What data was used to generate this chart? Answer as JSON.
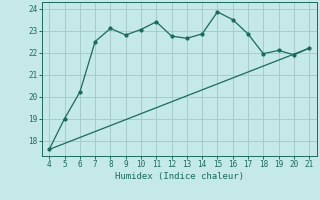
{
  "xlabel": "Humidex (Indice chaleur)",
  "xlim": [
    3.5,
    21.5
  ],
  "ylim": [
    17.3,
    24.3
  ],
  "xticks": [
    4,
    5,
    6,
    7,
    8,
    9,
    10,
    11,
    12,
    13,
    14,
    15,
    16,
    17,
    18,
    19,
    20,
    21
  ],
  "yticks": [
    18,
    19,
    20,
    21,
    22,
    23,
    24
  ],
  "background_color": "#c5e8e8",
  "grid_color": "#a8cccc",
  "line_color": "#1a6b5a",
  "curve_x": [
    4,
    5,
    6,
    7,
    8,
    9,
    10,
    11,
    12,
    13,
    14,
    15,
    16,
    17,
    18,
    19,
    20,
    21
  ],
  "curve_y": [
    17.6,
    19.0,
    20.2,
    22.5,
    23.1,
    22.8,
    23.05,
    23.4,
    22.75,
    22.65,
    22.85,
    23.85,
    23.5,
    22.85,
    21.95,
    22.1,
    21.9,
    22.2
  ],
  "line_x": [
    4,
    21
  ],
  "line_y": [
    17.6,
    22.2
  ]
}
